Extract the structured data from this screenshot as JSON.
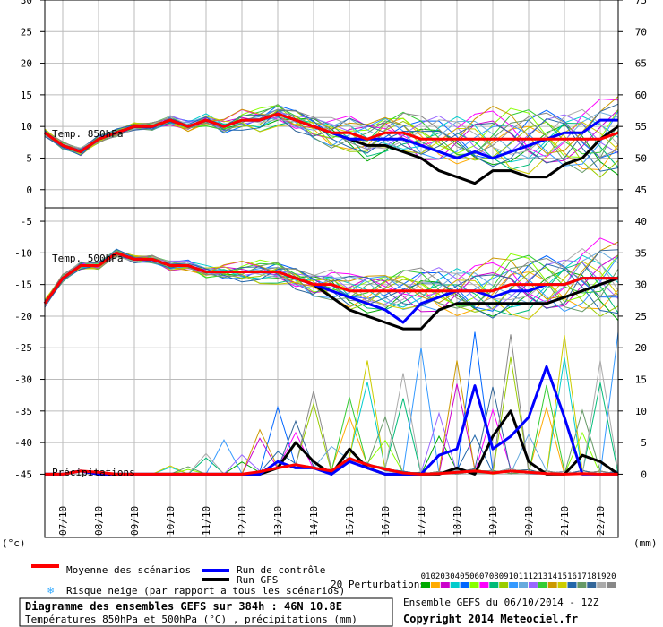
{
  "chart_data": {
    "type": "line",
    "title": "Diagramme des ensembles GEFS sur 384h : 46N 10.8E",
    "subtitle": "Températures 850hPa et 500hPa (°C) , précipitations (mm)",
    "run_info": "Ensemble GEFS du 06/10/2014 - 12Z",
    "copyright": "Copyright 2014 Meteociel.fr",
    "left_axis_unit": "(°c)",
    "right_axis_unit": "(mm)",
    "left_ticks": [
      30,
      25,
      20,
      15,
      10,
      5,
      0,
      -5,
      -10,
      -15,
      -20,
      -25,
      -30,
      -35,
      -40,
      -45
    ],
    "right_ticks": [
      75,
      70,
      65,
      60,
      55,
      50,
      45,
      40,
      35,
      30,
      25,
      20,
      15,
      10,
      5,
      0
    ],
    "x_ticks": [
      "07/10",
      "08/10",
      "09/10",
      "10/10",
      "11/10",
      "12/10",
      "13/10",
      "14/10",
      "15/10",
      "16/10",
      "17/10",
      "18/10",
      "19/10",
      "20/10",
      "21/10",
      "22/10"
    ],
    "ylim_left": [
      -55,
      30
    ],
    "ylim_right": [
      -10,
      75
    ],
    "xlim_hours": [
      0,
      384
    ],
    "panel_labels": {
      "t850": "Temp. 850hPa",
      "t500": "Temp. 500hPa",
      "precip": "Précipitations"
    },
    "legend": {
      "mean": "Moyenne des scénarios",
      "control": "Run de contrôle",
      "gfs": "Run GFS",
      "snow": "Risque neige (par rapport a tous les scénarios)",
      "perturbations": "20 Perturbations",
      "perturbation_ids": [
        "01",
        "02",
        "03",
        "04",
        "05",
        "06",
        "07",
        "08",
        "09",
        "10",
        "11",
        "12",
        "13",
        "14",
        "15",
        "16",
        "17",
        "18",
        "19",
        "20"
      ]
    },
    "colors": {
      "mean": "#ff0000",
      "control": "#0000ff",
      "gfs": "#000000",
      "grid": "#bbbbbb",
      "perturbations": [
        "#00aa00",
        "#ffaa00",
        "#cc00cc",
        "#00cccc",
        "#0066ff",
        "#88ff00",
        "#ff00ff",
        "#00bb77",
        "#99cc00",
        "#3399ff",
        "#66aadd",
        "#9966ff",
        "#33cc33",
        "#cc9900",
        "#cccc00",
        "#2266aa",
        "#669966",
        "#336699",
        "#aaaaaa",
        "#888888"
      ]
    },
    "series": [
      {
        "name": "Moyenne des scénarios",
        "panel": "t850",
        "x": [
          0,
          12,
          24,
          36,
          48,
          60,
          72,
          84,
          96,
          108,
          120,
          132,
          144,
          156,
          168,
          180,
          192,
          204,
          216,
          228,
          240,
          252,
          264,
          276,
          288,
          300,
          312,
          324,
          336,
          348,
          360,
          372,
          384
        ],
        "values": [
          9,
          7,
          6,
          8,
          9,
          10,
          10,
          11,
          10,
          11,
          10,
          11,
          11,
          12,
          11,
          10,
          9,
          9,
          8,
          9,
          9,
          8,
          8,
          8,
          8,
          8,
          8,
          8,
          8,
          8,
          8,
          8,
          9
        ]
      },
      {
        "name": "Run de contrôle",
        "panel": "t850",
        "x": [
          0,
          12,
          24,
          36,
          48,
          60,
          72,
          84,
          96,
          108,
          120,
          132,
          144,
          156,
          168,
          180,
          192,
          204,
          216,
          228,
          240,
          252,
          264,
          276,
          288,
          300,
          312,
          324,
          336,
          348,
          360,
          372,
          384
        ],
        "values": [
          9,
          7,
          6,
          8,
          9,
          10,
          10,
          11,
          10,
          11,
          10,
          11,
          11,
          12,
          11,
          10,
          9,
          8,
          8,
          8,
          8,
          7,
          6,
          5,
          6,
          5,
          6,
          7,
          8,
          9,
          9,
          11,
          11
        ]
      },
      {
        "name": "Run GFS",
        "panel": "t850",
        "x": [
          0,
          12,
          24,
          36,
          48,
          60,
          72,
          84,
          96,
          108,
          120,
          132,
          144,
          156,
          168,
          180,
          192,
          204,
          216,
          228,
          240,
          252,
          264,
          276,
          288,
          300,
          312,
          324,
          336,
          348,
          360,
          372,
          384
        ],
        "values": [
          9,
          7,
          6,
          8,
          9,
          10,
          10,
          11,
          10,
          11,
          10,
          11,
          11,
          12,
          11,
          10,
          9,
          8,
          7,
          7,
          6,
          5,
          3,
          2,
          1,
          3,
          3,
          2,
          2,
          4,
          5,
          8,
          10
        ]
      },
      {
        "name": "Moyenne des scénarios",
        "panel": "t500",
        "x": [
          0,
          12,
          24,
          36,
          48,
          60,
          72,
          84,
          96,
          108,
          120,
          132,
          144,
          156,
          168,
          180,
          192,
          204,
          216,
          228,
          240,
          252,
          264,
          276,
          288,
          300,
          312,
          324,
          336,
          348,
          360,
          372,
          384
        ],
        "values": [
          -18,
          -14,
          -12,
          -12,
          -10,
          -11,
          -11,
          -12,
          -12,
          -13,
          -13,
          -13,
          -13,
          -13,
          -14,
          -15,
          -15,
          -16,
          -16,
          -16,
          -16,
          -16,
          -16,
          -16,
          -16,
          -16,
          -15,
          -15,
          -15,
          -15,
          -14,
          -14,
          -14
        ]
      },
      {
        "name": "Run de contrôle",
        "panel": "t500",
        "x": [
          0,
          12,
          24,
          36,
          48,
          60,
          72,
          84,
          96,
          108,
          120,
          132,
          144,
          156,
          168,
          180,
          192,
          204,
          216,
          228,
          240,
          252,
          264,
          276,
          288,
          300,
          312,
          324,
          336,
          348,
          360,
          372,
          384
        ],
        "values": [
          -18,
          -14,
          -12,
          -12,
          -10,
          -11,
          -11,
          -12,
          -12,
          -13,
          -13,
          -13,
          -13,
          -13,
          -14,
          -15,
          -16,
          -17,
          -18,
          -19,
          -21,
          -18,
          -17,
          -16,
          -16,
          -17,
          -16,
          -16,
          -15,
          -15,
          -14,
          -14,
          -14
        ]
      },
      {
        "name": "Run GFS",
        "panel": "t500",
        "x": [
          0,
          12,
          24,
          36,
          48,
          60,
          72,
          84,
          96,
          108,
          120,
          132,
          144,
          156,
          168,
          180,
          192,
          204,
          216,
          228,
          240,
          252,
          264,
          276,
          288,
          300,
          312,
          324,
          336,
          348,
          360,
          372,
          384
        ],
        "values": [
          -18,
          -14,
          -12,
          -12,
          -10,
          -11,
          -11,
          -12,
          -12,
          -13,
          -13,
          -13,
          -13,
          -13,
          -14,
          -15,
          -17,
          -19,
          -20,
          -21,
          -22,
          -22,
          -19,
          -18,
          -18,
          -18,
          -18,
          -18,
          -18,
          -17,
          -16,
          -15,
          -14
        ]
      },
      {
        "name": "Moyenne des scénarios",
        "panel": "precip",
        "x": [
          0,
          12,
          24,
          36,
          48,
          60,
          72,
          84,
          96,
          108,
          120,
          132,
          144,
          156,
          168,
          180,
          192,
          204,
          216,
          228,
          240,
          252,
          264,
          276,
          288,
          300,
          312,
          324,
          336,
          348,
          360,
          372,
          384
        ],
        "values": [
          0,
          0,
          0.5,
          0.3,
          0,
          0,
          0,
          0,
          0,
          0,
          0,
          0,
          0.4,
          1,
          1.5,
          1,
          0.5,
          2.5,
          1.5,
          0.8,
          0.2,
          0,
          0.1,
          0.3,
          0.5,
          0.2,
          0.5,
          0.3,
          0.1,
          0,
          0.1,
          0,
          0
        ]
      },
      {
        "name": "Run de contrôle",
        "panel": "precip",
        "x": [
          0,
          12,
          24,
          36,
          48,
          60,
          72,
          84,
          96,
          108,
          120,
          132,
          144,
          156,
          168,
          180,
          192,
          204,
          216,
          228,
          240,
          252,
          264,
          276,
          288,
          300,
          312,
          324,
          336,
          348,
          360,
          372,
          384
        ],
        "values": [
          0,
          0,
          0.5,
          0,
          0,
          0,
          0,
          0,
          0,
          0,
          0,
          0,
          0,
          2,
          1,
          1,
          0,
          2,
          1,
          0,
          0,
          0,
          3,
          4,
          14,
          4,
          6,
          9,
          17,
          9,
          0,
          0,
          0
        ]
      },
      {
        "name": "Run GFS",
        "panel": "precip",
        "x": [
          0,
          12,
          24,
          36,
          48,
          60,
          72,
          84,
          96,
          108,
          120,
          132,
          144,
          156,
          168,
          180,
          192,
          204,
          216,
          228,
          240,
          252,
          264,
          276,
          288,
          300,
          312,
          324,
          336,
          348,
          360,
          372,
          384
        ],
        "values": [
          0,
          0,
          0.5,
          0,
          0,
          0,
          0,
          0,
          0,
          0,
          0,
          0,
          0,
          1,
          5,
          2,
          0,
          4,
          1,
          0,
          0,
          0,
          0,
          1,
          0,
          6,
          10,
          2,
          0,
          0,
          3,
          2,
          0
        ]
      }
    ]
  }
}
